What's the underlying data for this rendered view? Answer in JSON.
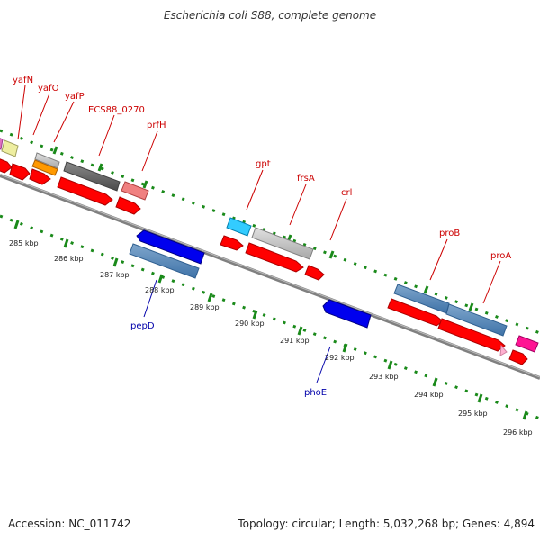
{
  "title": "Escherichia coli S88, complete genome",
  "footer": {
    "accession": "Accession: NC_011742",
    "summary": "Topology: circular; Length: 5,032,268 bp; Genes: 4,894"
  },
  "colors": {
    "forward_gene": "#ff0000",
    "reverse_gene": "#0000ee",
    "forward_label": "#cc0000",
    "reverse_label": "#0000aa",
    "ruler_ticks": "#1a8a1a",
    "backbone": "#808080"
  },
  "ruler": {
    "unit": "kbp",
    "labels": [
      "285 kbp",
      "286 kbp",
      "287 kbp",
      "288 kbp",
      "289 kbp",
      "290 kbp",
      "291 kbp",
      "292 kbp",
      "293 kbp",
      "294 kbp",
      "295 kbp",
      "296 kbp"
    ]
  },
  "forward_gene_labels": [
    "yafN",
    "yafO",
    "yafP",
    "ECS88_0270",
    "prfH",
    "gpt",
    "frsA",
    "crl",
    "proB",
    "proA"
  ],
  "reverse_gene_labels": [
    "pepD",
    "phoE"
  ]
}
